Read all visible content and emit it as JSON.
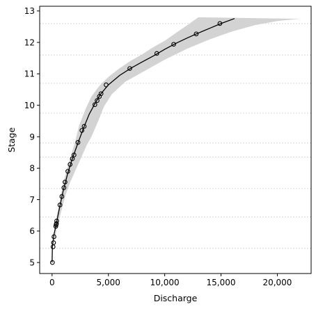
{
  "chart_data": {
    "type": "scatter",
    "title": "",
    "xlabel": "Discharge",
    "ylabel": "Stage",
    "xlim": [
      -1100,
      23000
    ],
    "ylim": [
      4.65,
      13.15
    ],
    "xticks": [
      0,
      5000,
      10000,
      15000,
      20000
    ],
    "xtick_labels": [
      "0",
      "5,000",
      "10,000",
      "15,000",
      "20,000"
    ],
    "yticks": [
      5,
      6,
      7,
      8,
      9,
      10,
      11,
      12,
      13
    ],
    "ytick_labels": [
      "5",
      "6",
      "7",
      "8",
      "9",
      "10",
      "11",
      "12",
      "13"
    ],
    "grid": "horizontal dotted lines between ticks",
    "grid_lines_y": [
      5.45,
      6.45,
      7.35,
      8.35,
      8.8,
      9.75,
      10.7,
      11.6,
      12.6
    ],
    "colors": {
      "band": "#d3d3d3",
      "line": "#000000",
      "marker_edge": "#000000",
      "grid": "#cccccc"
    },
    "series": [
      {
        "kind": "observations",
        "marker": "open-circle",
        "points": [
          {
            "x": 30,
            "y": 5.0
          },
          {
            "x": 90,
            "y": 5.5
          },
          {
            "x": 130,
            "y": 5.63
          },
          {
            "x": 170,
            "y": 5.82
          },
          {
            "x": 330,
            "y": 6.15
          },
          {
            "x": 360,
            "y": 6.2
          },
          {
            "x": 390,
            "y": 6.24
          },
          {
            "x": 410,
            "y": 6.32
          },
          {
            "x": 700,
            "y": 6.83
          },
          {
            "x": 870,
            "y": 7.1
          },
          {
            "x": 1050,
            "y": 7.38
          },
          {
            "x": 1150,
            "y": 7.56
          },
          {
            "x": 1400,
            "y": 7.9
          },
          {
            "x": 1600,
            "y": 8.12
          },
          {
            "x": 1800,
            "y": 8.3
          },
          {
            "x": 1950,
            "y": 8.42
          },
          {
            "x": 2300,
            "y": 8.82
          },
          {
            "x": 2650,
            "y": 9.2
          },
          {
            "x": 2850,
            "y": 9.33
          },
          {
            "x": 3800,
            "y": 10.02
          },
          {
            "x": 4000,
            "y": 10.15
          },
          {
            "x": 4200,
            "y": 10.28
          },
          {
            "x": 4350,
            "y": 10.37
          },
          {
            "x": 4800,
            "y": 10.65
          },
          {
            "x": 6900,
            "y": 11.17
          },
          {
            "x": 9300,
            "y": 11.65
          },
          {
            "x": 10800,
            "y": 11.94
          },
          {
            "x": 12800,
            "y": 12.27
          },
          {
            "x": 14900,
            "y": 12.6
          }
        ]
      },
      {
        "kind": "fitted-curve",
        "points": [
          {
            "x": 0,
            "y": 5.0
          },
          {
            "x": 30,
            "y": 5.5
          },
          {
            "x": 150,
            "y": 5.85
          },
          {
            "x": 400,
            "y": 6.28
          },
          {
            "x": 700,
            "y": 6.8
          },
          {
            "x": 1000,
            "y": 7.3
          },
          {
            "x": 1400,
            "y": 7.85
          },
          {
            "x": 1800,
            "y": 8.3
          },
          {
            "x": 2300,
            "y": 8.8
          },
          {
            "x": 2800,
            "y": 9.28
          },
          {
            "x": 3300,
            "y": 9.72
          },
          {
            "x": 3800,
            "y": 10.05
          },
          {
            "x": 4300,
            "y": 10.35
          },
          {
            "x": 5000,
            "y": 10.65
          },
          {
            "x": 6000,
            "y": 10.95
          },
          {
            "x": 7000,
            "y": 11.18
          },
          {
            "x": 8000,
            "y": 11.38
          },
          {
            "x": 9000,
            "y": 11.57
          },
          {
            "x": 10000,
            "y": 11.78
          },
          {
            "x": 11000,
            "y": 11.97
          },
          {
            "x": 12000,
            "y": 12.14
          },
          {
            "x": 13000,
            "y": 12.3
          },
          {
            "x": 14000,
            "y": 12.45
          },
          {
            "x": 15000,
            "y": 12.6
          },
          {
            "x": 16200,
            "y": 12.76
          }
        ]
      },
      {
        "kind": "uncertainty-band",
        "upper": [
          {
            "x": 0,
            "y": 5.0
          },
          {
            "x": 400,
            "y": 6.45
          },
          {
            "x": 1000,
            "y": 7.55
          },
          {
            "x": 1500,
            "y": 8.2
          },
          {
            "x": 2000,
            "y": 8.78
          },
          {
            "x": 2400,
            "y": 9.35
          },
          {
            "x": 3000,
            "y": 9.9
          },
          {
            "x": 3500,
            "y": 10.28
          },
          {
            "x": 4200,
            "y": 10.62
          },
          {
            "x": 5000,
            "y": 10.9
          },
          {
            "x": 6000,
            "y": 11.18
          },
          {
            "x": 7000,
            "y": 11.42
          },
          {
            "x": 8000,
            "y": 11.62
          },
          {
            "x": 9000,
            "y": 11.85
          },
          {
            "x": 10000,
            "y": 12.05
          },
          {
            "x": 11000,
            "y": 12.3
          },
          {
            "x": 12000,
            "y": 12.55
          },
          {
            "x": 13000,
            "y": 12.8
          }
        ],
        "lower": [
          {
            "x": 22000,
            "y": 12.75
          },
          {
            "x": 20000,
            "y": 12.68
          },
          {
            "x": 18000,
            "y": 12.55
          },
          {
            "x": 16000,
            "y": 12.35
          },
          {
            "x": 14000,
            "y": 12.1
          },
          {
            "x": 12000,
            "y": 11.8
          },
          {
            "x": 10000,
            "y": 11.45
          },
          {
            "x": 8000,
            "y": 11.05
          },
          {
            "x": 6500,
            "y": 10.75
          },
          {
            "x": 5300,
            "y": 10.35
          },
          {
            "x": 4600,
            "y": 9.95
          },
          {
            "x": 4100,
            "y": 9.5
          },
          {
            "x": 3500,
            "y": 9.0
          },
          {
            "x": 3100,
            "y": 8.75
          },
          {
            "x": 2600,
            "y": 8.35
          },
          {
            "x": 2100,
            "y": 7.95
          },
          {
            "x": 1600,
            "y": 7.55
          },
          {
            "x": 1200,
            "y": 7.15
          },
          {
            "x": 800,
            "y": 6.6
          },
          {
            "x": 400,
            "y": 6.05
          },
          {
            "x": 150,
            "y": 5.55
          },
          {
            "x": 0,
            "y": 5.0
          }
        ]
      }
    ]
  }
}
